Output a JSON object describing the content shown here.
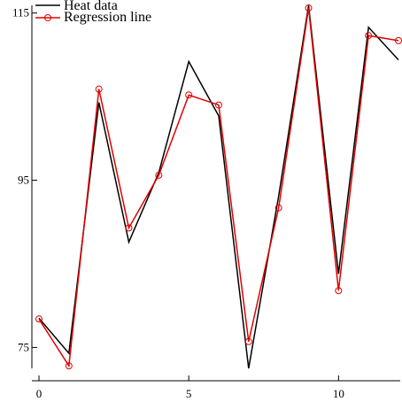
{
  "chart_data": {
    "type": "line",
    "title": "",
    "xlabel": "",
    "ylabel": "",
    "x": [
      0,
      1,
      2,
      3,
      4,
      5,
      6,
      7,
      8,
      9,
      10,
      11,
      12
    ],
    "xlim": [
      0,
      12
    ],
    "ylim": [
      72.5,
      115.5
    ],
    "x_ticks": [
      0,
      5,
      10
    ],
    "x_tick_labels": [
      "0",
      "5",
      "10"
    ],
    "y_ticks": [
      75,
      95,
      115
    ],
    "y_tick_labels": [
      "75",
      "95",
      "115"
    ],
    "grid": false,
    "legend_position": "top-left",
    "series": [
      {
        "name": "Heat data",
        "color": "#000000",
        "marker": "none",
        "values": [
          78.5,
          74.3,
          104.3,
          87.6,
          95.9,
          109.2,
          102.7,
          72.5,
          93.1,
          115.9,
          83.8,
          113.3,
          109.4
        ]
      },
      {
        "name": "Regression line",
        "color": "#e00000",
        "marker": "circle",
        "values": [
          78.4,
          72.8,
          105.9,
          89.3,
          95.6,
          105.2,
          104.0,
          75.7,
          91.7,
          115.6,
          81.8,
          112.3,
          111.7
        ]
      }
    ]
  }
}
